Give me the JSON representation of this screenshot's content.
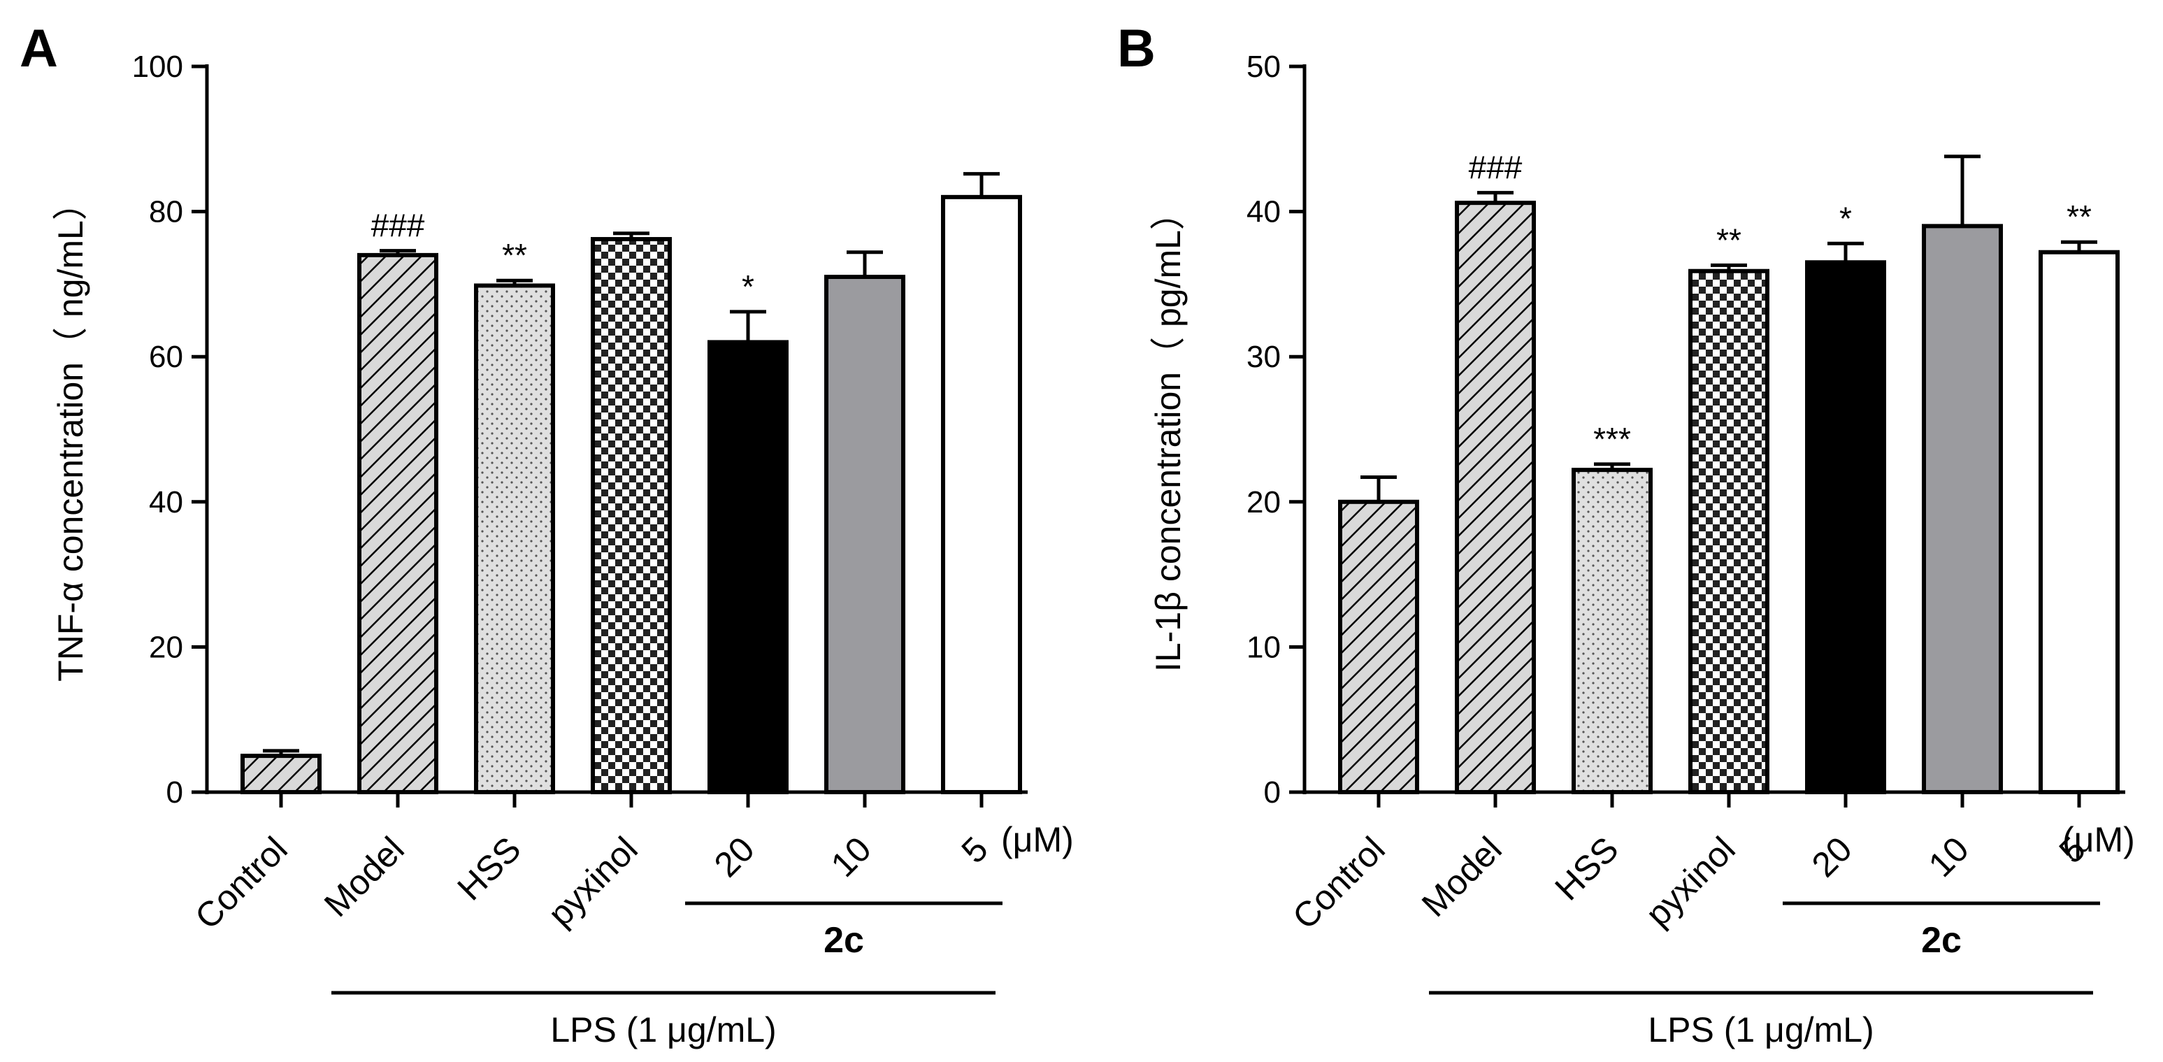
{
  "chart_data": [
    {
      "type": "bar",
      "panel": "A",
      "title": "",
      "xlabel": "",
      "ylabel": "TNF-α concentration（ ng/mL）",
      "ylim": [
        0,
        100
      ],
      "yticks": [
        0,
        20,
        40,
        60,
        80,
        100
      ],
      "categories": [
        "Control",
        "Model",
        "HSS",
        "pyxinol",
        "20",
        "10",
        "5"
      ],
      "unit_label": "(μM)",
      "series": [
        {
          "name": "TNF-α",
          "values": [
            5,
            74,
            69.8,
            76.2,
            62,
            71,
            82
          ],
          "error": [
            0.7,
            0.6,
            0.7,
            0.8,
            4.2,
            3.4,
            3.2
          ],
          "significance": [
            "",
            "###",
            "**",
            "",
            "*",
            "",
            ""
          ]
        }
      ],
      "patterns": [
        "hatch",
        "hatch",
        "dots",
        "checker",
        "black",
        "gray",
        "white"
      ],
      "groups": [
        {
          "label": "2c",
          "from": 4,
          "to": 6,
          "bold": true
        },
        {
          "label": "LPS (1 μg/mL)",
          "from": 1,
          "to": 6,
          "bold": false
        }
      ]
    },
    {
      "type": "bar",
      "panel": "B",
      "title": "",
      "xlabel": "",
      "ylabel": "IL-1β concentration（ pg/mL）",
      "ylim": [
        0,
        50
      ],
      "yticks": [
        0,
        10,
        20,
        30,
        40,
        50
      ],
      "categories": [
        "Control",
        "Model",
        "HSS",
        "pyxinol",
        "20",
        "10",
        "5"
      ],
      "unit_label": "(μM)",
      "series": [
        {
          "name": "IL-1β",
          "values": [
            20,
            40.6,
            22.2,
            35.9,
            36.5,
            39,
            37.2
          ],
          "error": [
            1.7,
            0.7,
            0.4,
            0.4,
            1.3,
            4.8,
            0.7
          ],
          "significance": [
            "",
            "###",
            "***",
            "**",
            "*",
            "",
            "**"
          ]
        }
      ],
      "patterns": [
        "hatch",
        "hatch",
        "dots",
        "checker",
        "black",
        "gray",
        "white"
      ],
      "groups": [
        {
          "label": "2c",
          "from": 4,
          "to": 6,
          "bold": true
        },
        {
          "label": "LPS (1 μg/mL)",
          "from": 1,
          "to": 6,
          "bold": false
        }
      ]
    }
  ],
  "colors": {
    "hatch_bg": "#d9d9d9",
    "dots_bg": "#e0e0e0",
    "checker_dark": "#222222",
    "gray_bar": "#9b9b9f",
    "black_bar": "#000000",
    "white_bar": "#ffffff",
    "stroke": "#000000"
  }
}
